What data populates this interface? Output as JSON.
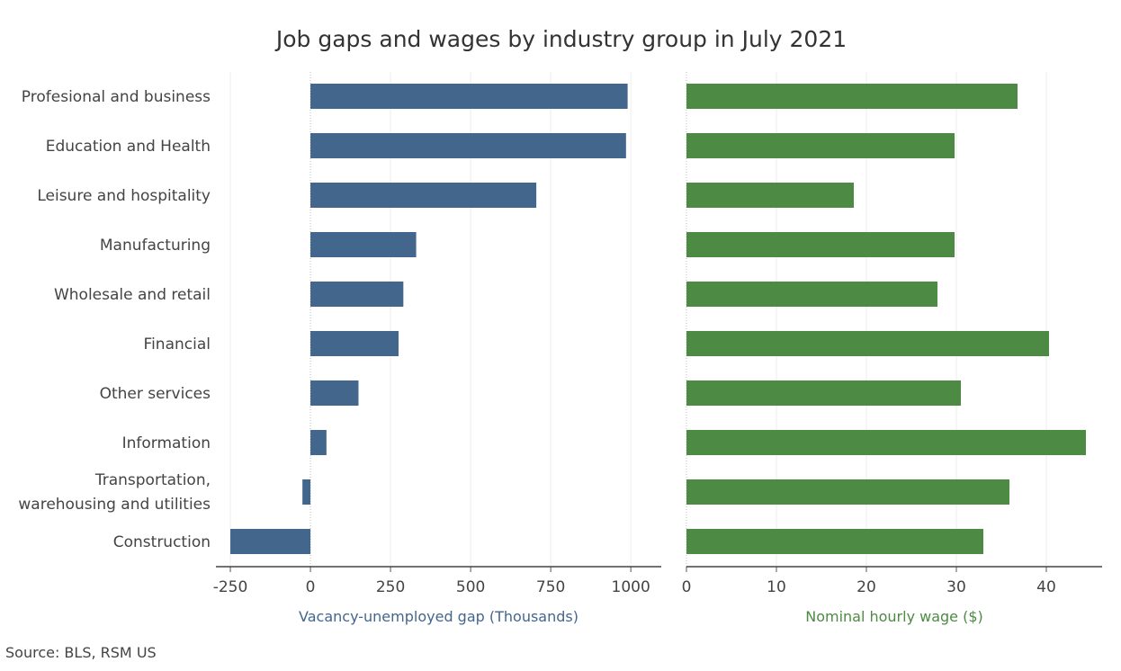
{
  "chart_data": [
    {
      "type": "bar",
      "orientation": "horizontal",
      "title": "Job gaps and wages by industry group in July 2021",
      "categories": [
        "Profesional and business",
        "Education and Health",
        "Leisure and hospitality",
        "Manufacturing",
        "Wholesale and retail",
        "Financial",
        "Other services",
        "Information",
        "Transportation,\nwarehousing and utilities",
        "Construction"
      ],
      "values": [
        990,
        985,
        705,
        330,
        290,
        275,
        150,
        50,
        -25,
        -250
      ],
      "xlabel": "Vacancy-unemployed gap (Thousands)",
      "xticks": [
        -250,
        0,
        250,
        500,
        750,
        1000
      ],
      "xlim": [
        -295,
        1095
      ],
      "color": "#43668d",
      "grid": true
    },
    {
      "type": "bar",
      "orientation": "horizontal",
      "categories": [
        "Profesional and business",
        "Education and Health",
        "Leisure and hospitality",
        "Manufacturing",
        "Wholesale and retail",
        "Financial",
        "Other services",
        "Information",
        "Transportation,\nwarehousing and utilities",
        "Construction"
      ],
      "values": [
        36.8,
        29.8,
        18.6,
        29.8,
        27.9,
        40.3,
        30.5,
        44.4,
        35.9,
        33.0
      ],
      "xlabel": "Nominal hourly wage ($)",
      "xticks": [
        0,
        10,
        20,
        30,
        40
      ],
      "xlim": [
        0,
        46.2
      ],
      "color": "#4d8a43",
      "grid": true
    }
  ],
  "source": "Source: BLS, RSM US"
}
